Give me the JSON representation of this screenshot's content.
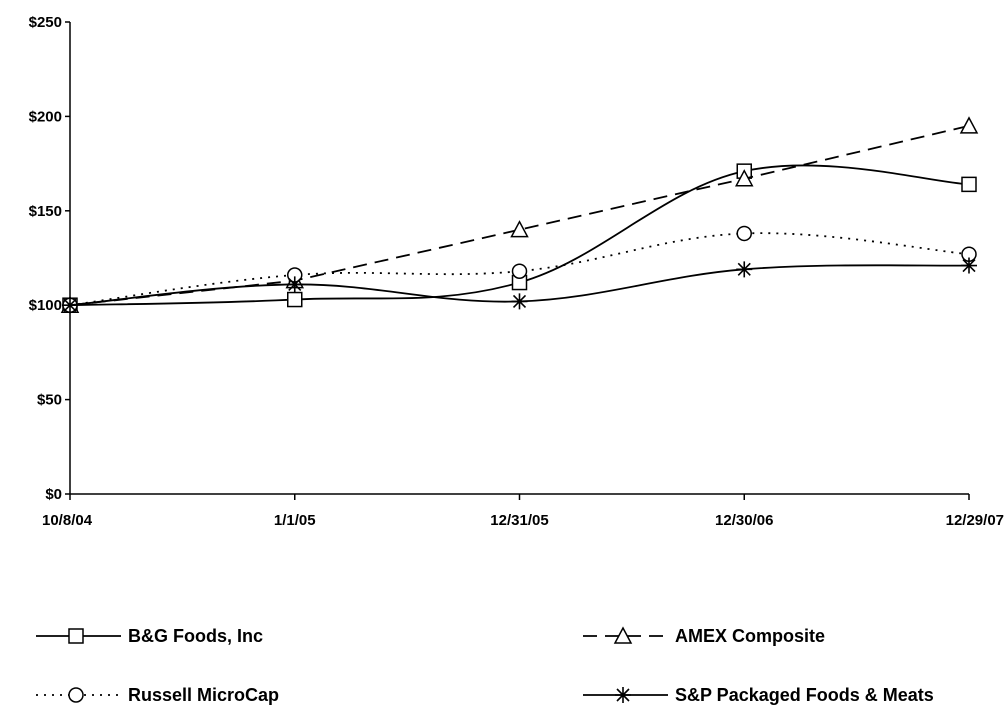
{
  "chart_data": {
    "type": "line",
    "categories": [
      "10/8/04",
      "1/1/05",
      "12/31/05",
      "12/30/06",
      "12/29/07"
    ],
    "ylim": [
      0,
      250
    ],
    "yticks": [
      0,
      50,
      100,
      150,
      200,
      250
    ],
    "ytick_labels": [
      "$0",
      "$50",
      "$100",
      "$150",
      "$200",
      "$250"
    ],
    "grid": false,
    "legend_position": "bottom",
    "series": [
      {
        "name": "B&G Foods, Inc",
        "values": [
          100,
          103,
          112,
          171,
          164
        ],
        "marker": "square",
        "dash": "solid",
        "curve": "smooth"
      },
      {
        "name": "AMEX Composite",
        "values": [
          100,
          113,
          140,
          167,
          195
        ],
        "marker": "triangle",
        "dash": "dashed",
        "curve": "straight"
      },
      {
        "name": "Russell MicroCap",
        "values": [
          100,
          116,
          118,
          138,
          127
        ],
        "marker": "circle",
        "dash": "dotted",
        "curve": "smooth"
      },
      {
        "name": "S&P Packaged Foods & Meats",
        "values": [
          100,
          111,
          102,
          119,
          121
        ],
        "marker": "star",
        "dash": "solid",
        "curve": "smooth"
      }
    ]
  }
}
